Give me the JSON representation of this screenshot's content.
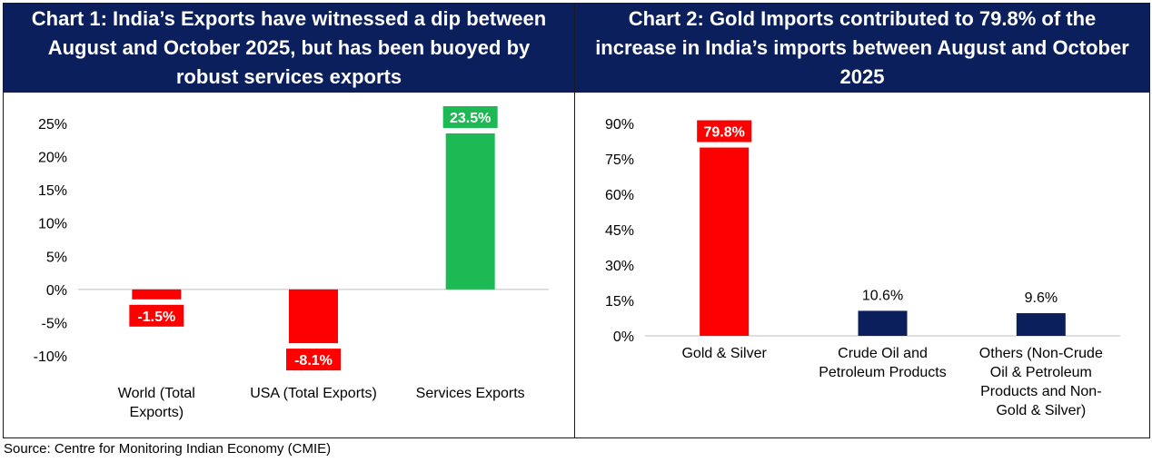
{
  "chart_data": [
    {
      "type": "bar",
      "title": "Chart 1: India’s Exports have witnessed a dip between August and October 2025, but has been buoyed by robust services exports",
      "categories": [
        [
          "World (Total",
          "Exports)"
        ],
        [
          "USA (Total Exports)"
        ],
        [
          "Services Exports"
        ]
      ],
      "values": [
        -1.5,
        -8.1,
        23.5
      ],
      "data_labels": [
        "-1.5%",
        "-8.1%",
        "23.5%"
      ],
      "colors": [
        "#ff0000",
        "#ff0000",
        "#1db954"
      ],
      "label_style": "box",
      "yticks": [
        25,
        20,
        15,
        10,
        5,
        0,
        -5,
        -10
      ],
      "ytick_labels": [
        "25%",
        "20%",
        "15%",
        "10%",
        "5%",
        "0%",
        "-5%",
        "-10%"
      ],
      "ylim": [
        -10,
        25
      ],
      "xlabel": "",
      "ylabel": "",
      "grid": false
    },
    {
      "type": "bar",
      "title": "Chart 2: Gold Imports contributed to 79.8% of the increase in India’s imports between August and October 2025",
      "categories": [
        [
          "Gold & Silver"
        ],
        [
          "Crude Oil and",
          "Petroleum Products"
        ],
        [
          "Others (Non-Crude",
          "Oil & Petroleum",
          "Products and Non-",
          "Gold & Silver)"
        ]
      ],
      "values": [
        79.8,
        10.6,
        9.6
      ],
      "data_labels": [
        "79.8%",
        "10.6%",
        "9.6%"
      ],
      "colors": [
        "#ff0000",
        "#0a1f5c",
        "#0a1f5c"
      ],
      "label_style": [
        "box",
        "plain",
        "plain"
      ],
      "yticks": [
        90,
        75,
        60,
        45,
        30,
        15,
        0
      ],
      "ytick_labels": [
        "90%",
        "75%",
        "60%",
        "45%",
        "30%",
        "15%",
        "0%"
      ],
      "ylim": [
        0,
        90
      ],
      "xlabel": "",
      "ylabel": "",
      "grid": false
    }
  ],
  "source": "Source: Centre for Monitoring Indian Economy (CMIE)"
}
